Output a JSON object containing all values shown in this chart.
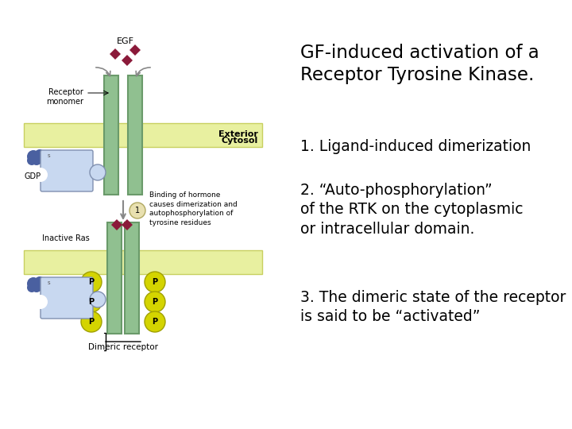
{
  "bg_color": "#ffffff",
  "title_text": "GF-induced activation of a\nReceptor Tyrosine Kinase.",
  "point1": "1. Ligand-induced dimerization",
  "point2": "2. “Auto-phosphorylation”\nof the RTK on the cytoplasmic\nor intracellular domain.",
  "point3": "3. The dimeric state of the receptor\nis said to be “activated”",
  "membrane_color": "#e8f0a0",
  "membrane_stroke": "#c8d060",
  "receptor_color": "#90c090",
  "receptor_stroke": "#6a9a6a",
  "egf_color": "#8b1a3a",
  "phospho_color": "#d4d400",
  "phospho_stroke": "#a0a000",
  "ras_body_color": "#c8d8f0",
  "ras_dark_color": "#4a60a0",
  "annotation_circle_color": "#e8e0b0",
  "annotation_circle_stroke": "#b0a860",
  "text_color": "#000000",
  "arrow_color": "#888888",
  "exterior_label": "Exterior",
  "cytosol_label": "Cytosol",
  "egf_label": "EGF",
  "receptor_monomer_label": "Receptor\nmonomer",
  "gdp_label": "GDP",
  "inactive_ras_label": "Inactive Ras",
  "binding_annotation": "Binding of hormone\ncauses dimerization and\nautophosphorylation of\ntyrosine residues",
  "dimeric_receptor_label": "Dimeric receptor"
}
